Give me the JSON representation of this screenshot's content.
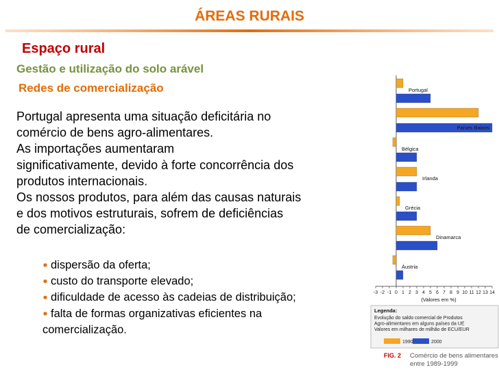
{
  "header": {
    "title": "ÁREAS RURAIS"
  },
  "sections": {
    "heading": "Espaço rural",
    "subheading": "Gestão e utilização do solo arável",
    "topic": "Redes de comercialização"
  },
  "body": {
    "lines": [
      "Portugal apresenta uma situação deficitária no",
      "comércio de bens agro-alimentares.",
      "As importações aumentaram",
      "significativamente, devido à forte concorrência dos",
      "produtos internacionais.",
      "Os nossos produtos, para além das causas naturais",
      "e dos motivos estruturais, sofrem de deficiências",
      "de comercialização:"
    ],
    "bullets": [
      [
        "dispersão da oferta;"
      ],
      [
        "custo do transporte elevado;"
      ],
      [
        "dificuldade de acesso às cadeias de distribuição;"
      ],
      [
        "falta de formas organizativas eficientes na",
        "comercialização."
      ]
    ]
  },
  "chart_data": {
    "type": "bar",
    "orientation": "horizontal",
    "categories": [
      "Portugal",
      "Países Baixos",
      "Bélgica",
      "Irlanda",
      "Grécia",
      "Dinamarca",
      "Áustria"
    ],
    "series": [
      {
        "name": "1990",
        "color": "#f5a623",
        "values": [
          1,
          12,
          -0.5,
          3,
          0.5,
          5,
          -0.5
        ]
      },
      {
        "name": "2000",
        "color": "#2b4fc6",
        "values": [
          5,
          14,
          3,
          3,
          3,
          6,
          1
        ]
      }
    ],
    "xlim": [
      -3,
      14
    ],
    "xticks": [
      -3,
      -2,
      -1,
      0,
      1,
      2,
      3,
      4,
      5,
      6,
      7,
      8,
      9,
      10,
      11,
      12,
      13,
      14
    ],
    "xlabel": "(Valores em %)",
    "legend_title": "Legenda:",
    "legend_text": [
      "Evolução do saldo comercial de Produtos",
      "Agro-alimentares em alguns países da UE",
      "Valores em milhares de milhão de ECU/EUR"
    ],
    "caption_label": "FIG. 2",
    "caption": [
      "Comércio de bens alimentares",
      "entre 1989-1999"
    ]
  }
}
